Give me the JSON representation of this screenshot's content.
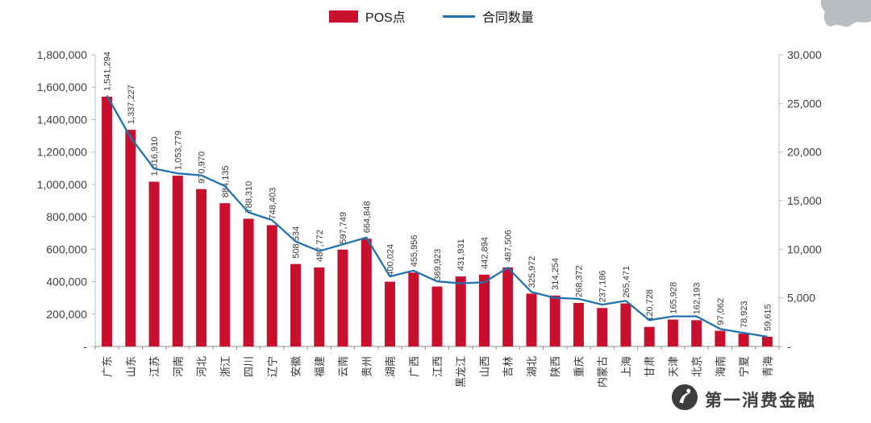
{
  "watermark": {
    "brand": "第一消费金融"
  },
  "chart_data": {
    "type": "bar",
    "subtype": "bar+line combo, dual axis",
    "title": "",
    "legend_position": "top",
    "categories": [
      "广东",
      "山东",
      "江苏",
      "河南",
      "河北",
      "浙江",
      "四川",
      "辽宁",
      "安徽",
      "福建",
      "云南",
      "贵州",
      "湖南",
      "广西",
      "江西",
      "黑龙江",
      "山西",
      "吉林",
      "湖北",
      "陕西",
      "重庆",
      "内蒙古",
      "上海",
      "甘肃",
      "天津",
      "北京",
      "海南",
      "宁夏",
      "青海"
    ],
    "series": [
      {
        "name": "POS点",
        "type": "bar",
        "axis": "left",
        "color": "#c8102e",
        "values": [
          1541294,
          1337227,
          1016910,
          1053779,
          970970,
          884135,
          788310,
          748403,
          508534,
          487772,
          597749,
          664848,
          400024,
          455956,
          369923,
          431931,
          442894,
          487506,
          325972,
          314254,
          268372,
          237186,
          265471,
          120728,
          165928,
          162193,
          97062,
          78923,
          59615
        ]
      },
      {
        "name": "合同数量",
        "type": "line",
        "axis": "right",
        "color": "#2073af",
        "values": [
          25800,
          21500,
          18300,
          17800,
          17600,
          16500,
          13800,
          13000,
          10800,
          9800,
          10500,
          11200,
          7200,
          7800,
          6700,
          6500,
          6600,
          8100,
          5600,
          5000,
          4900,
          4300,
          4700,
          2700,
          3100,
          3100,
          1800,
          1400,
          1000
        ]
      }
    ],
    "left_axis": {
      "min": 0,
      "max": 1800000,
      "step": 200000,
      "zero_label": "-"
    },
    "right_axis": {
      "min": 0,
      "max": 30000,
      "step": 5000,
      "zero_label": "-"
    },
    "bar_labels": true,
    "grid": false
  }
}
